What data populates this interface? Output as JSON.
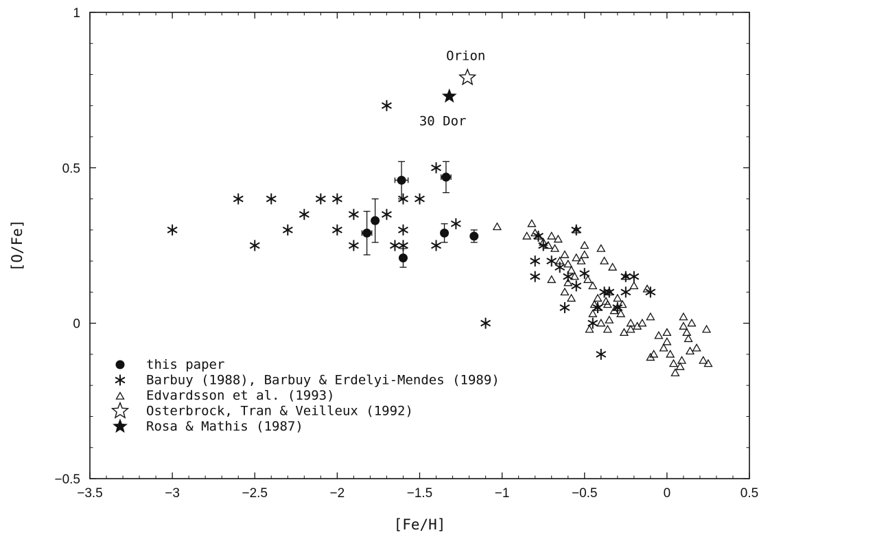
{
  "chart_data": {
    "type": "scatter",
    "xlabel": "[Fe/H]",
    "ylabel": "[O/Fe]",
    "xlim": [
      -3.5,
      0.5
    ],
    "ylim": [
      -0.5,
      1.0
    ],
    "x_ticks": [
      -3.5,
      -3,
      -2.5,
      -2,
      -1.5,
      -1,
      -0.5,
      0,
      0.5
    ],
    "x_tick_labels": [
      "−3.5",
      "−3",
      "−2.5",
      "−2",
      "−1.5",
      "−1",
      "−0.5",
      "0",
      "0.5"
    ],
    "y_ticks": [
      -0.5,
      0,
      0.5,
      1
    ],
    "y_tick_labels": [
      "−0.5",
      "0",
      "0.5",
      "1"
    ],
    "legend_position": "bottom-left",
    "annotations": [
      {
        "text": "Orion",
        "x": -1.22,
        "y": 0.86
      },
      {
        "text": "30 Dor",
        "x": -1.36,
        "y": 0.65
      }
    ],
    "series": [
      {
        "name": "this paper",
        "marker": "filled-circle",
        "points": [
          {
            "x": -1.82,
            "y": 0.29,
            "yerr": 0.07,
            "xerr": 0.03
          },
          {
            "x": -1.77,
            "y": 0.33,
            "yerr": 0.07,
            "xerr": 0.0
          },
          {
            "x": -1.61,
            "y": 0.46,
            "yerr": 0.06,
            "xerr": 0.04
          },
          {
            "x": -1.6,
            "y": 0.21,
            "yerr": 0.03,
            "xerr": 0.0
          },
          {
            "x": -1.34,
            "y": 0.47,
            "yerr": 0.05,
            "xerr": 0.03
          },
          {
            "x": -1.35,
            "y": 0.29,
            "yerr": 0.03,
            "xerr": 0.0
          },
          {
            "x": -1.17,
            "y": 0.28,
            "yerr": 0.02,
            "xerr": 0.0
          }
        ]
      },
      {
        "name": "Barbuy (1988), Barbuy & Erdelyi-Mendes (1989)",
        "marker": "asterisk",
        "x": [
          -3.0,
          -2.6,
          -2.5,
          -2.4,
          -2.3,
          -2.2,
          -2.1,
          -2.0,
          -2.0,
          -1.9,
          -1.9,
          -1.7,
          -1.7,
          -1.65,
          -1.6,
          -1.6,
          -1.6,
          -1.5,
          -1.4,
          -1.4,
          -1.28,
          -1.1,
          -0.8,
          -0.8,
          -0.78,
          -0.75,
          -0.7,
          -0.65,
          -0.62,
          -0.6,
          -0.55,
          -0.55,
          -0.5,
          -0.45,
          -0.42,
          -0.4,
          -0.38,
          -0.35,
          -0.3,
          -0.25,
          -0.25,
          -0.2,
          -0.1
        ],
        "y": [
          0.3,
          0.4,
          0.25,
          0.4,
          0.3,
          0.35,
          0.4,
          0.4,
          0.3,
          0.35,
          0.25,
          0.7,
          0.35,
          0.25,
          0.4,
          0.3,
          0.25,
          0.4,
          0.5,
          0.25,
          0.32,
          0.0,
          0.2,
          0.15,
          0.28,
          0.25,
          0.2,
          0.18,
          0.05,
          0.15,
          0.3,
          0.12,
          0.16,
          0.0,
          0.05,
          -0.1,
          0.1,
          0.1,
          0.05,
          0.15,
          0.1,
          0.15,
          0.1
        ]
      },
      {
        "name": "Edvardsson et al. (1993)",
        "marker": "open-triangle",
        "x": [
          -1.03,
          -0.82,
          -0.8,
          -0.78,
          -0.75,
          -0.72,
          -0.7,
          -0.68,
          -0.65,
          -0.62,
          -0.6,
          -0.58,
          -0.56,
          -0.55,
          -0.52,
          -0.5,
          -0.48,
          -0.45,
          -0.42,
          -0.4,
          -0.38,
          -0.36,
          -0.35,
          -0.33,
          -0.3,
          -0.28,
          -0.25,
          -0.22,
          -0.2,
          -0.15,
          -0.12,
          -0.1,
          -0.08,
          -0.05,
          -0.02,
          0.0,
          0.02,
          0.05,
          0.08,
          0.1,
          0.12,
          0.15,
          0.18,
          0.22,
          0.24,
          -0.85,
          -0.66,
          -0.62,
          -0.58,
          -0.5,
          -0.44,
          -0.4,
          -0.36,
          -0.32,
          -0.26,
          -0.18,
          -0.1,
          0.04,
          0.09,
          0.13,
          0.25,
          -0.7,
          -0.55,
          -0.45,
          -0.37,
          -0.3,
          -0.22,
          0.0,
          0.1,
          0.14,
          -0.6,
          -0.47,
          -0.42,
          -0.35,
          -0.27
        ],
        "y": [
          0.31,
          0.32,
          0.29,
          0.28,
          0.26,
          0.25,
          0.28,
          0.24,
          0.2,
          0.22,
          0.19,
          0.17,
          0.15,
          0.3,
          0.2,
          0.25,
          0.14,
          0.12,
          0.08,
          0.24,
          0.2,
          0.06,
          0.1,
          0.18,
          0.05,
          0.03,
          0.15,
          -0.02,
          0.12,
          0.0,
          0.11,
          0.02,
          -0.1,
          -0.04,
          -0.08,
          -0.06,
          -0.1,
          -0.16,
          -0.14,
          0.02,
          -0.03,
          0.0,
          -0.08,
          -0.12,
          -0.02,
          0.28,
          0.27,
          0.1,
          0.08,
          0.22,
          0.06,
          0.0,
          -0.02,
          0.04,
          -0.03,
          -0.01,
          -0.11,
          -0.13,
          -0.12,
          -0.05,
          -0.13,
          0.14,
          0.21,
          0.03,
          0.07,
          0.08,
          0.0,
          -0.03,
          -0.01,
          -0.09,
          0.13,
          -0.02,
          0.05,
          0.01,
          0.06
        ]
      },
      {
        "name": "Osterbrock, Tran & Veilleux (1992)",
        "marker": "open-star",
        "x": [
          -1.21
        ],
        "y": [
          0.79
        ]
      },
      {
        "name": "Rosa & Mathis (1987)",
        "marker": "filled-star",
        "x": [
          -1.32
        ],
        "y": [
          0.73
        ]
      }
    ]
  }
}
